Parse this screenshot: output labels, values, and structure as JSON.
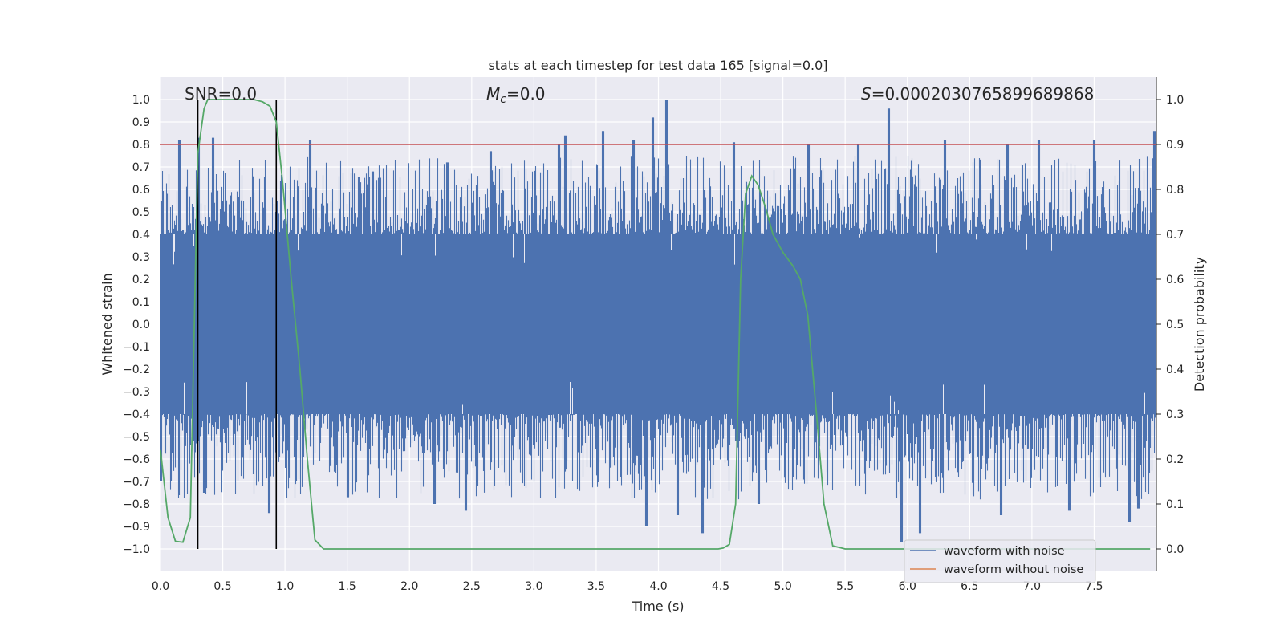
{
  "chart_data": {
    "type": "line",
    "title": "stats at each timestep for test data 165 [signal=0.0]",
    "xlabel": "Time (s)",
    "ylabel": "Whitened strain",
    "y2label": "Detection probability",
    "xlim": [
      0.0,
      8.0
    ],
    "ylim": [
      -1.1,
      1.1
    ],
    "y2lim": [
      -0.05,
      1.05
    ],
    "grid": true,
    "legend_position": "lower-right",
    "x_ticks": [
      "0.0",
      "0.5",
      "1.0",
      "1.5",
      "2.0",
      "2.5",
      "3.0",
      "3.5",
      "4.0",
      "4.5",
      "5.0",
      "5.5",
      "6.0",
      "6.5",
      "7.0",
      "7.5"
    ],
    "y_ticks": [
      "1.0",
      "0.9",
      "0.8",
      "0.7",
      "0.6",
      "0.5",
      "0.4",
      "0.3",
      "0.2",
      "0.1",
      "0.0",
      "−0.1",
      "−0.2",
      "−0.3",
      "−0.4",
      "−0.5",
      "−0.6",
      "−0.7",
      "−0.8",
      "−0.9",
      "−1.0"
    ],
    "y2_ticks": [
      "1.0",
      "0.9",
      "0.8",
      "0.7",
      "0.6",
      "0.5",
      "0.4",
      "0.3",
      "0.2",
      "0.1",
      "0.0"
    ],
    "annotations": {
      "snr_label": "SNR=0.0",
      "mc_symbol": "M",
      "mc_subscript": "c",
      "mc_value": "=0.0",
      "s_symbol": "S",
      "s_value": "=0.0002030765899689868"
    },
    "threshold": {
      "y": 0.8,
      "color": "#c44e52"
    },
    "vlines": [
      0.3,
      0.93
    ],
    "series": [
      {
        "name": "waveform with noise",
        "color": "#4c72b0",
        "description_only": false,
        "envelope_upper": [
          [
            0.0,
            0.45
          ],
          [
            0.25,
            0.5
          ],
          [
            0.5,
            0.45
          ],
          [
            1.0,
            0.45
          ],
          [
            1.5,
            0.45
          ],
          [
            2.0,
            0.45
          ],
          [
            2.5,
            0.45
          ],
          [
            3.0,
            0.45
          ],
          [
            3.5,
            0.45
          ],
          [
            4.0,
            0.45
          ],
          [
            4.5,
            0.45
          ],
          [
            5.0,
            0.45
          ],
          [
            5.5,
            0.45
          ],
          [
            6.0,
            0.45
          ],
          [
            6.5,
            0.45
          ],
          [
            7.0,
            0.45
          ],
          [
            7.5,
            0.45
          ],
          [
            8.0,
            0.45
          ]
        ],
        "peaks_upper": [
          [
            0.15,
            0.82
          ],
          [
            0.3,
            0.83
          ],
          [
            0.42,
            0.83
          ],
          [
            0.93,
            0.5
          ],
          [
            1.2,
            0.82
          ],
          [
            1.7,
            0.68
          ],
          [
            2.3,
            0.72
          ],
          [
            2.65,
            0.77
          ],
          [
            3.2,
            0.8
          ],
          [
            3.25,
            0.84
          ],
          [
            3.55,
            0.86
          ],
          [
            3.8,
            0.82
          ],
          [
            3.95,
            0.92
          ],
          [
            4.06,
            1.0
          ],
          [
            4.6,
            0.81
          ],
          [
            5.2,
            0.8
          ],
          [
            5.6,
            0.8
          ],
          [
            5.85,
            0.96
          ],
          [
            6.3,
            0.82
          ],
          [
            6.8,
            0.8
          ],
          [
            7.05,
            0.82
          ],
          [
            7.5,
            0.82
          ],
          [
            7.98,
            0.86
          ]
        ],
        "peaks_lower": [
          [
            0.0,
            -0.7
          ],
          [
            0.35,
            -0.75
          ],
          [
            0.87,
            -0.84
          ],
          [
            1.5,
            -0.77
          ],
          [
            2.2,
            -0.8
          ],
          [
            2.45,
            -0.83
          ],
          [
            3.9,
            -0.9
          ],
          [
            4.15,
            -0.85
          ],
          [
            4.35,
            -0.93
          ],
          [
            4.8,
            -0.8
          ],
          [
            5.95,
            -0.97
          ],
          [
            6.1,
            -0.93
          ],
          [
            6.75,
            -0.85
          ],
          [
            7.3,
            -0.83
          ],
          [
            7.78,
            -0.88
          ],
          [
            7.85,
            -0.82
          ]
        ]
      },
      {
        "name": "waveform without noise",
        "color": "#dd8452",
        "values": []
      },
      {
        "name": "detection_probability",
        "axis": "right",
        "color": "#55a868",
        "x": [
          0.0,
          0.06,
          0.12,
          0.18,
          0.24,
          0.3,
          0.35,
          0.38,
          0.45,
          0.55,
          0.65,
          0.75,
          0.82,
          0.88,
          0.93,
          0.98,
          1.05,
          1.12,
          1.18,
          1.24,
          1.31,
          1.4,
          2.0,
          3.0,
          4.0,
          4.48,
          4.52,
          4.57,
          4.62,
          4.66,
          4.7,
          4.75,
          4.8,
          4.86,
          4.92,
          5.0,
          5.08,
          5.14,
          5.2,
          5.27,
          5.33,
          5.4,
          5.5,
          6.0,
          7.0,
          7.95
        ],
        "values": [
          0.22,
          0.07,
          0.017,
          0.015,
          0.07,
          0.88,
          0.98,
          1.0,
          1.0,
          1.0,
          1.0,
          1.0,
          0.995,
          0.985,
          0.95,
          0.82,
          0.6,
          0.4,
          0.2,
          0.02,
          0.0,
          0.0,
          0.0,
          0.0,
          0.0,
          0.0,
          0.002,
          0.01,
          0.1,
          0.6,
          0.79,
          0.83,
          0.81,
          0.76,
          0.7,
          0.66,
          0.63,
          0.6,
          0.52,
          0.3,
          0.1,
          0.007,
          0.0,
          0.0,
          0.0,
          0.0
        ]
      }
    ]
  }
}
